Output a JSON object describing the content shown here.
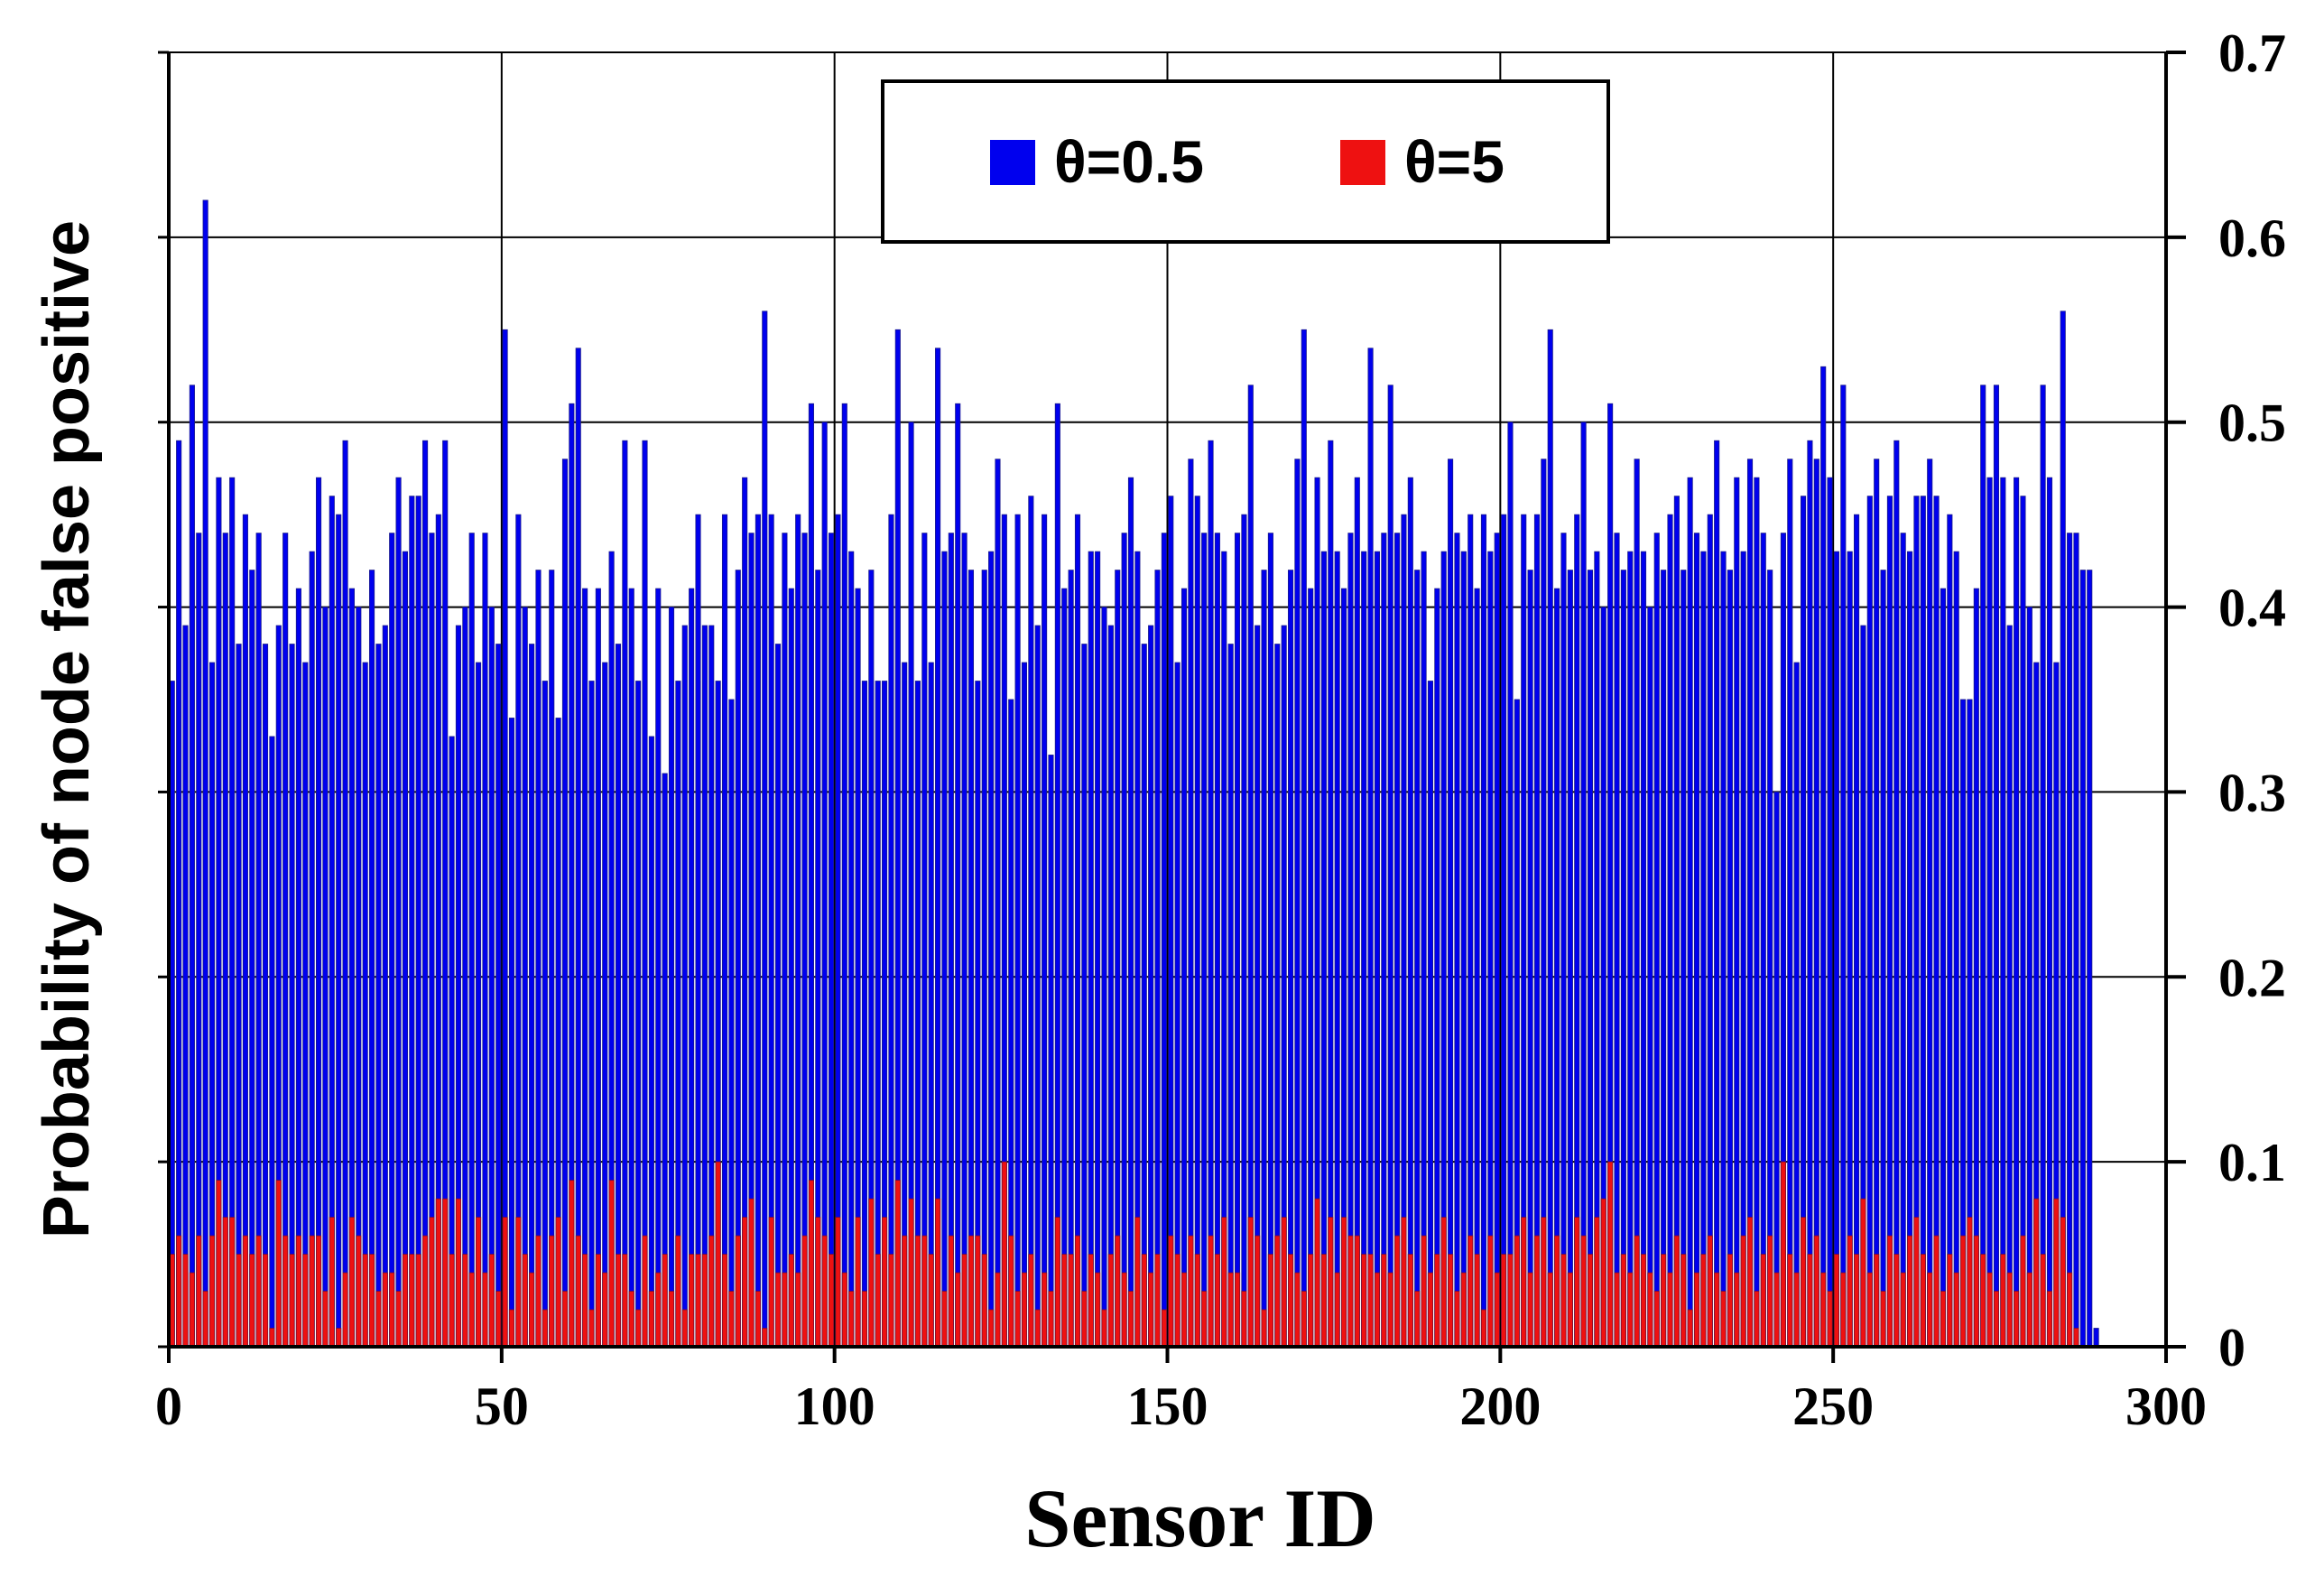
{
  "chart_data": {
    "type": "bar",
    "title": "",
    "xlabel": "Sensor ID",
    "ylabel": "Probability of node false positive",
    "xlim": [
      0,
      300
    ],
    "ylim": [
      0,
      0.7
    ],
    "x_ticks": [
      "0",
      "50",
      "100",
      "150",
      "200",
      "250",
      "300"
    ],
    "y_ticks": [
      "0",
      "0.1",
      "0.2",
      "0.3",
      "0.4",
      "0.5",
      "0.6",
      "0.7"
    ],
    "grid": true,
    "y_axis_side": "right",
    "legend_position": "top-center",
    "colors": {
      "theta_05": "#0000ee",
      "theta_05_outline": "#1a1a8c",
      "theta_5": "#ee1111",
      "theta_5_outline": "#7a1030"
    },
    "series": [
      {
        "name": "θ=0.5",
        "values": [
          0.36,
          0.49,
          0.39,
          0.52,
          0.44,
          0.62,
          0.37,
          0.47,
          0.44,
          0.47,
          0.38,
          0.45,
          0.42,
          0.44,
          0.38,
          0.33,
          0.39,
          0.44,
          0.38,
          0.41,
          0.37,
          0.43,
          0.47,
          0.4,
          0.46,
          0.45,
          0.49,
          0.41,
          0.4,
          0.37,
          0.42,
          0.38,
          0.39,
          0.44,
          0.47,
          0.43,
          0.46,
          0.46,
          0.49,
          0.44,
          0.45,
          0.49,
          0.33,
          0.39,
          0.4,
          0.44,
          0.37,
          0.44,
          0.4,
          0.38,
          0.55,
          0.34,
          0.45,
          0.4,
          0.38,
          0.42,
          0.36,
          0.42,
          0.34,
          0.48,
          0.51,
          0.54,
          0.41,
          0.36,
          0.41,
          0.37,
          0.43,
          0.38,
          0.49,
          0.41,
          0.36,
          0.49,
          0.33,
          0.41,
          0.31,
          0.4,
          0.36,
          0.39,
          0.41,
          0.45,
          0.39,
          0.39,
          0.36,
          0.45,
          0.35,
          0.42,
          0.47,
          0.44,
          0.45,
          0.56,
          0.45,
          0.38,
          0.44,
          0.41,
          0.45,
          0.44,
          0.51,
          0.42,
          0.5,
          0.44,
          0.45,
          0.51,
          0.43,
          0.41,
          0.36,
          0.42,
          0.36,
          0.36,
          0.45,
          0.55,
          0.37,
          0.5,
          0.36,
          0.44,
          0.37,
          0.54,
          0.43,
          0.44,
          0.51,
          0.44,
          0.42,
          0.36,
          0.42,
          0.43,
          0.48,
          0.45,
          0.35,
          0.45,
          0.37,
          0.46,
          0.39,
          0.45,
          0.32,
          0.51,
          0.41,
          0.42,
          0.45,
          0.38,
          0.43,
          0.43,
          0.4,
          0.39,
          0.42,
          0.44,
          0.47,
          0.43,
          0.38,
          0.39,
          0.42,
          0.44,
          0.46,
          0.37,
          0.41,
          0.48,
          0.46,
          0.44,
          0.49,
          0.44,
          0.43,
          0.38,
          0.44,
          0.45,
          0.52,
          0.39,
          0.42,
          0.44,
          0.38,
          0.39,
          0.42,
          0.48,
          0.55,
          0.41,
          0.47,
          0.43,
          0.49,
          0.43,
          0.41,
          0.44,
          0.47,
          0.43,
          0.54,
          0.43,
          0.44,
          0.52,
          0.44,
          0.45,
          0.47,
          0.42,
          0.43,
          0.36,
          0.41,
          0.43,
          0.48,
          0.44,
          0.43,
          0.45,
          0.41,
          0.45,
          0.43,
          0.44,
          0.45,
          0.5,
          0.35,
          0.45,
          0.42,
          0.45,
          0.48,
          0.55,
          0.41,
          0.44,
          0.42,
          0.45,
          0.5,
          0.42,
          0.43,
          0.4,
          0.51,
          0.44,
          0.42,
          0.43,
          0.48,
          0.43,
          0.4,
          0.44,
          0.42,
          0.45,
          0.46,
          0.42,
          0.47,
          0.44,
          0.43,
          0.45,
          0.49,
          0.43,
          0.42,
          0.47,
          0.43,
          0.48,
          0.47,
          0.44,
          0.42,
          0.3,
          0.44,
          0.48,
          0.37,
          0.46,
          0.49,
          0.48,
          0.53,
          0.47,
          0.43,
          0.52,
          0.43,
          0.45,
          0.39,
          0.46,
          0.48,
          0.42,
          0.46,
          0.49,
          0.44,
          0.43,
          0.46,
          0.46,
          0.48,
          0.46,
          0.41,
          0.45,
          0.43,
          0.35,
          0.35,
          0.41,
          0.52,
          0.47,
          0.52,
          0.47,
          0.39,
          0.47,
          0.46,
          0.4,
          0.37,
          0.52,
          0.47,
          0.37,
          0.56,
          0.44,
          0.44,
          0.42,
          0.42,
          0.01
        ],
        "x_start": 1
      },
      {
        "name": "θ=5",
        "values": [
          0.05,
          0.06,
          0.05,
          0.04,
          0.06,
          0.03,
          0.06,
          0.09,
          0.07,
          0.07,
          0.05,
          0.06,
          0.05,
          0.06,
          0.05,
          0.01,
          0.09,
          0.06,
          0.05,
          0.06,
          0.05,
          0.06,
          0.06,
          0.03,
          0.07,
          0.01,
          0.04,
          0.07,
          0.06,
          0.05,
          0.05,
          0.03,
          0.04,
          0.04,
          0.03,
          0.05,
          0.05,
          0.05,
          0.06,
          0.07,
          0.08,
          0.08,
          0.05,
          0.08,
          0.05,
          0.04,
          0.07,
          0.04,
          0.05,
          0.03,
          0.07,
          0.02,
          0.07,
          0.05,
          0.04,
          0.06,
          0.02,
          0.06,
          0.07,
          0.03,
          0.09,
          0.06,
          0.05,
          0.02,
          0.05,
          0.04,
          0.09,
          0.05,
          0.05,
          0.03,
          0.02,
          0.06,
          0.03,
          0.04,
          0.05,
          0.03,
          0.06,
          0.02,
          0.05,
          0.05,
          0.05,
          0.06,
          0.1,
          0.05,
          0.03,
          0.06,
          0.07,
          0.08,
          0.03,
          0.01,
          0.07,
          0.04,
          0.04,
          0.05,
          0.04,
          0.06,
          0.09,
          0.07,
          0.06,
          0.05,
          0.07,
          0.04,
          0.03,
          0.07,
          0.03,
          0.08,
          0.05,
          0.07,
          0.05,
          0.09,
          0.06,
          0.08,
          0.06,
          0.06,
          0.05,
          0.08,
          0.03,
          0.06,
          0.04,
          0.05,
          0.06,
          0.06,
          0.05,
          0.02,
          0.04,
          0.1,
          0.06,
          0.03,
          0.04,
          0.05,
          0.02,
          0.04,
          0.03,
          0.07,
          0.05,
          0.05,
          0.06,
          0.03,
          0.05,
          0.04,
          0.02,
          0.05,
          0.06,
          0.04,
          0.03,
          0.07,
          0.05,
          0.04,
          0.05,
          0.02,
          0.06,
          0.05,
          0.04,
          0.06,
          0.05,
          0.03,
          0.06,
          0.05,
          0.07,
          0.04,
          0.04,
          0.03,
          0.07,
          0.06,
          0.02,
          0.05,
          0.06,
          0.07,
          0.05,
          0.04,
          0.03,
          0.05,
          0.08,
          0.05,
          0.07,
          0.04,
          0.07,
          0.06,
          0.06,
          0.05,
          0.05,
          0.04,
          0.05,
          0.04,
          0.06,
          0.07,
          0.05,
          0.03,
          0.06,
          0.04,
          0.05,
          0.07,
          0.05,
          0.03,
          0.04,
          0.06,
          0.05,
          0.02,
          0.06,
          0.04,
          0.05,
          0.05,
          0.06,
          0.07,
          0.04,
          0.06,
          0.07,
          0.04,
          0.06,
          0.05,
          0.04,
          0.07,
          0.06,
          0.05,
          0.07,
          0.08,
          0.1,
          0.04,
          0.05,
          0.04,
          0.06,
          0.05,
          0.04,
          0.03,
          0.05,
          0.04,
          0.06,
          0.05,
          0.02,
          0.04,
          0.05,
          0.06,
          0.04,
          0.03,
          0.05,
          0.04,
          0.06,
          0.07,
          0.03,
          0.05,
          0.06,
          0.04,
          0.1,
          0.05,
          0.04,
          0.07,
          0.05,
          0.06,
          0.04,
          0.03,
          0.05,
          0.04,
          0.06,
          0.05,
          0.08,
          0.04,
          0.05,
          0.03,
          0.06,
          0.05,
          0.04,
          0.06,
          0.07,
          0.05,
          0.04,
          0.06,
          0.03,
          0.05,
          0.04,
          0.06,
          0.07,
          0.06,
          0.05,
          0.04,
          0.03,
          0.05,
          0.04,
          0.03,
          0.06,
          0.04,
          0.08,
          0.05,
          0.03,
          0.08,
          0.07,
          0.04,
          0.01
        ],
        "x_start": 1
      }
    ]
  }
}
